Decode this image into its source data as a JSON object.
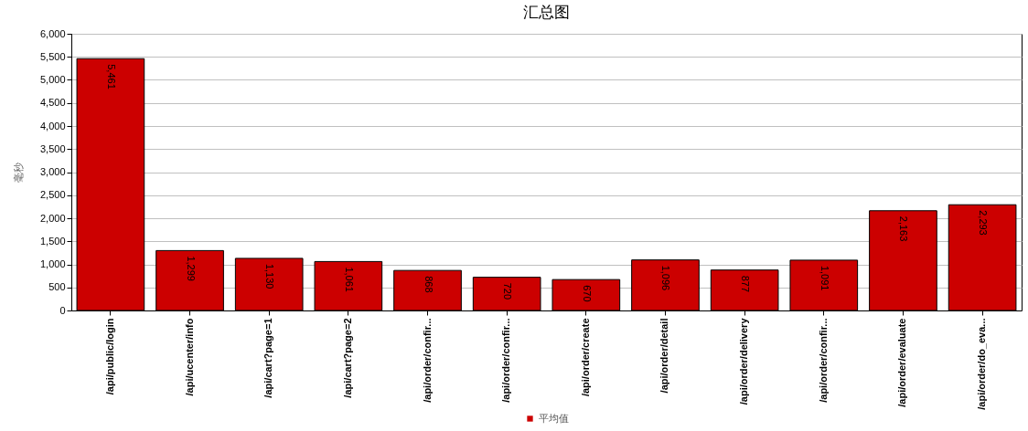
{
  "chart_data": {
    "type": "bar",
    "title": "汇总图",
    "ylabel": "毫秒",
    "categories": [
      "/api/public/login",
      "/api/ucenter/info",
      "/api/cart?page=1",
      "/api/cart?page=2",
      "/api/order/confir...",
      "/api/order/confir...",
      "/api/order/create",
      "/api/order/detail",
      "/api/order/delivery",
      "/api/order/confir...",
      "/api/order/evaluate",
      "/api/order/do_eva..."
    ],
    "series": [
      {
        "name": "平均值",
        "color": "#cc0000",
        "values": [
          5461,
          1299,
          1130,
          1061,
          868,
          720,
          670,
          1096,
          877,
          1091,
          2163,
          2293
        ],
        "value_labels": [
          "5,461",
          "1,299",
          "1,130",
          "1,061",
          "868",
          "720",
          "670",
          "1,096",
          "877",
          "1,091",
          "2,163",
          "2,293"
        ]
      }
    ],
    "ylim": [
      0,
      6000
    ],
    "yticks": [
      0,
      500,
      {
        "value": 1000,
        "label": "1,000"
      },
      {
        "value": 1500,
        "label": "1,500"
      },
      {
        "value": 2000,
        "label": "2,000"
      },
      {
        "value": 2500,
        "label": "2,500"
      },
      {
        "value": 3000,
        "label": "3,000"
      },
      {
        "value": 3500,
        "label": "3,500"
      },
      {
        "value": 4000,
        "label": "4,000"
      },
      {
        "value": 4500,
        "label": "4,500"
      },
      {
        "value": 5000,
        "label": "5,000"
      },
      {
        "value": 5500,
        "label": "5,500"
      },
      {
        "value": 6000,
        "label": "6,000"
      }
    ],
    "grid": "y",
    "legend": "bottom"
  }
}
